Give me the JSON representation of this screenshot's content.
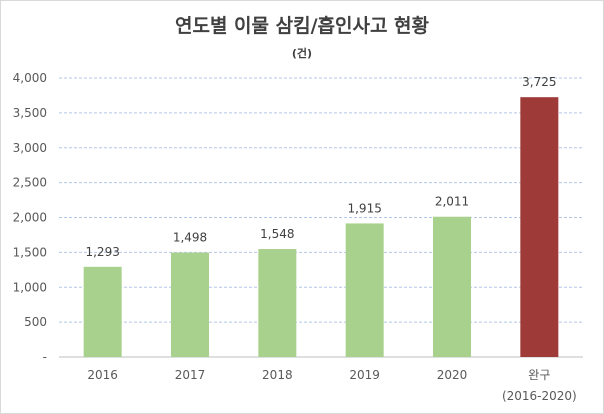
{
  "chart_data": {
    "type": "bar",
    "title": "연도별 이물 삼킴/흡인사고 현황",
    "unit": "(건)",
    "categories": [
      "2016",
      "2017",
      "2018",
      "2019",
      "2020",
      "완구"
    ],
    "category_sublabels": [
      "",
      "",
      "",
      "",
      "",
      "(2016-2020)"
    ],
    "values": [
      1293,
      1498,
      1548,
      1915,
      2011,
      3725
    ],
    "data_labels": [
      "1,293",
      "1,498",
      "1,548",
      "1,915",
      "2,011",
      "3,725"
    ],
    "ylim": [
      0,
      4000
    ],
    "yticks": [
      0,
      500,
      1000,
      1500,
      2000,
      2500,
      3000,
      3500,
      4000
    ],
    "ytick_labels": [
      "-",
      "500",
      "1,000",
      "1,500",
      "2,000",
      "2,500",
      "3,000",
      "3,500",
      "4,000"
    ],
    "bar_colors": [
      "#a9d18e",
      "#a9d18e",
      "#a9d18e",
      "#a9d18e",
      "#a9d18e",
      "#9e3a38"
    ],
    "grid": true,
    "legend": "none"
  }
}
